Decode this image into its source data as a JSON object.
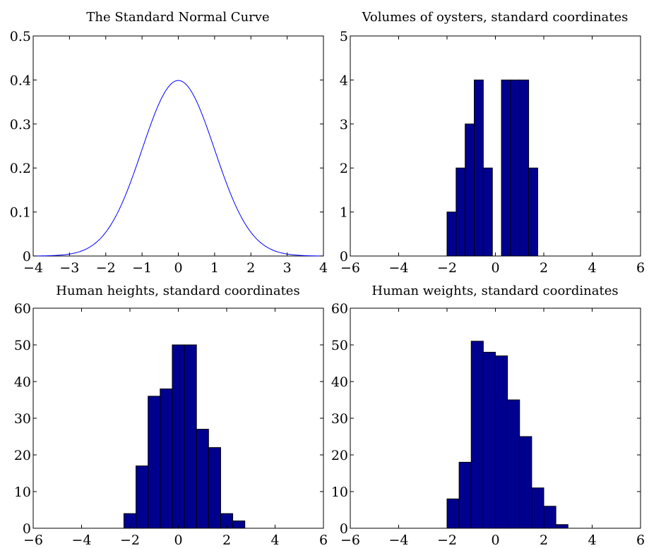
{
  "chart_data": [
    {
      "type": "line",
      "title": "The Standard Normal Curve",
      "xlim": [
        -4,
        4
      ],
      "ylim": [
        0,
        0.5
      ],
      "xticks": [
        -4,
        -3,
        -2,
        -1,
        0,
        1,
        2,
        3,
        4
      ],
      "yticks": [
        0,
        0.1,
        0.2,
        0.3,
        0.4,
        0.5
      ],
      "grid": false,
      "series": [
        {
          "function": "standard normal density",
          "x": [
            -4,
            -3.5,
            -3,
            -2.5,
            -2,
            -1.5,
            -1,
            -0.5,
            0,
            0.5,
            1,
            1.5,
            2,
            2.5,
            3,
            3.5,
            4
          ],
          "values": [
            0.0001,
            0.0009,
            0.0044,
            0.0175,
            0.054,
            0.1295,
            0.242,
            0.3521,
            0.3989,
            0.3521,
            0.242,
            0.1295,
            0.054,
            0.0175,
            0.0044,
            0.0009,
            0.0001
          ],
          "color": "#0000ff"
        }
      ]
    },
    {
      "type": "bar",
      "title": "Volumes of oysters, standard coordinates",
      "xlim": [
        -6,
        6
      ],
      "ylim": [
        0,
        5
      ],
      "xticks": [
        -6,
        -4,
        -2,
        0,
        2,
        4,
        6
      ],
      "yticks": [
        0,
        1,
        2,
        3,
        4,
        5
      ],
      "grid": false,
      "bar_color": "#00008f",
      "bin_edges": [
        -2.0,
        -1.625,
        -1.25,
        -0.875,
        -0.5,
        -0.125,
        0.25,
        0.625,
        1.0,
        1.375,
        1.75
      ],
      "values": [
        1,
        2,
        3,
        4,
        2,
        0,
        4,
        4,
        4,
        2
      ]
    },
    {
      "type": "bar",
      "title": "Human heights, standard coordinates",
      "xlim": [
        -6,
        6
      ],
      "ylim": [
        0,
        60
      ],
      "xticks": [
        -6,
        -4,
        -2,
        0,
        2,
        4,
        6
      ],
      "yticks": [
        0,
        10,
        20,
        30,
        40,
        50,
        60
      ],
      "grid": false,
      "bar_color": "#00008f",
      "bin_edges": [
        -2.25,
        -1.75,
        -1.25,
        -0.75,
        -0.25,
        0.25,
        0.75,
        1.25,
        1.75,
        2.25,
        2.75
      ],
      "values": [
        4,
        17,
        36,
        38,
        50,
        50,
        27,
        22,
        4,
        2
      ]
    },
    {
      "type": "bar",
      "title": "Human weights, standard coordinates",
      "xlim": [
        -6,
        6
      ],
      "ylim": [
        0,
        60
      ],
      "xticks": [
        -6,
        -4,
        -2,
        0,
        2,
        4,
        6
      ],
      "yticks": [
        0,
        10,
        20,
        30,
        40,
        50,
        60
      ],
      "grid": false,
      "bar_color": "#00008f",
      "bin_edges": [
        -2.0,
        -1.5,
        -1.0,
        -0.5,
        0.0,
        0.5,
        1.0,
        1.5,
        2.0,
        2.5,
        3.0
      ],
      "values": [
        8,
        18,
        51,
        48,
        47,
        35,
        25,
        11,
        6,
        1
      ]
    }
  ]
}
